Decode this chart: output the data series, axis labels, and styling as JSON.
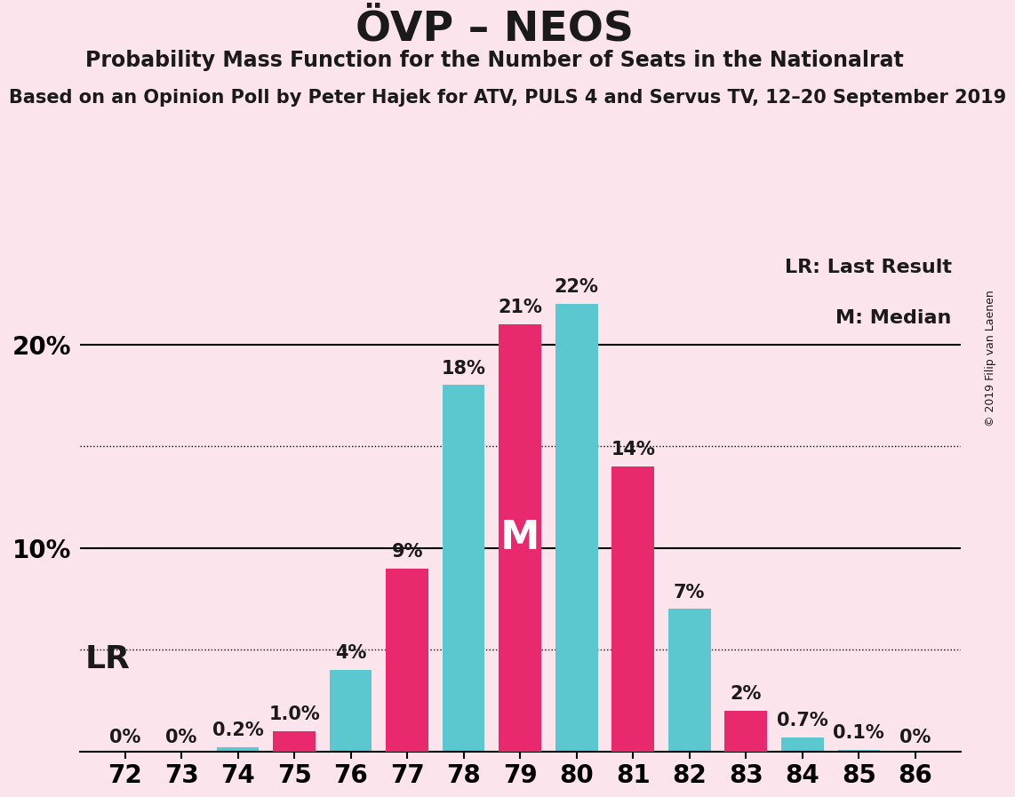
{
  "title": "ÖVP – NEOS",
  "subtitle": "Probability Mass Function for the Number of Seats in the Nationalrat",
  "source_line": "Based on an Opinion Poll by Peter Hajek for ATV, PULS 4 and Servus TV, 12–20 September 2019",
  "copyright": "© 2019 Filip van Laenen",
  "background_color": "#fce4ec",
  "bar_color_pmf": "#5bc8d0",
  "bar_color_lr": "#e8296e",
  "text_color": "#1a1a1a",
  "seats": [
    72,
    73,
    74,
    75,
    76,
    77,
    78,
    79,
    80,
    81,
    82,
    83,
    84,
    85,
    86
  ],
  "pmf_values": [
    0.0,
    0.0,
    0.2,
    0.0,
    4.0,
    0.0,
    18.0,
    0.0,
    22.0,
    0.0,
    7.0,
    0.0,
    0.7,
    0.1,
    0.0
  ],
  "lr_values": [
    0.0,
    0.0,
    0.0,
    1.0,
    0.0,
    9.0,
    0.0,
    21.0,
    0.0,
    14.0,
    0.0,
    2.0,
    0.0,
    0.0,
    0.0
  ],
  "pmf_labels": [
    "",
    "",
    "0.2%",
    "",
    "4%",
    "",
    "18%",
    "",
    "22%",
    "",
    "7%",
    "",
    "0.7%",
    "0.1%",
    ""
  ],
  "lr_labels": [
    "0%",
    "0%",
    "",
    "1.0%",
    "",
    "9%",
    "",
    "21%",
    "",
    "14%",
    "",
    "2%",
    "",
    "",
    "0%"
  ],
  "show_zero_at_bottom": [
    true,
    true,
    false,
    false,
    false,
    false,
    false,
    false,
    false,
    false,
    false,
    false,
    false,
    false,
    true
  ],
  "median_seat": 79,
  "ylim": [
    0,
    25
  ],
  "dotted_lines": [
    5.0,
    15.0
  ],
  "solid_lines": [
    10.0,
    20.0
  ],
  "bar_width": 0.75,
  "title_fontsize": 34,
  "subtitle_fontsize": 17,
  "source_fontsize": 15,
  "label_fontsize": 15,
  "tick_fontsize": 20,
  "legend_fontsize": 16,
  "median_label_fontsize": 32,
  "lr_label_fontsize": 26,
  "ytick_labels": [
    "",
    "10%",
    "20%"
  ]
}
